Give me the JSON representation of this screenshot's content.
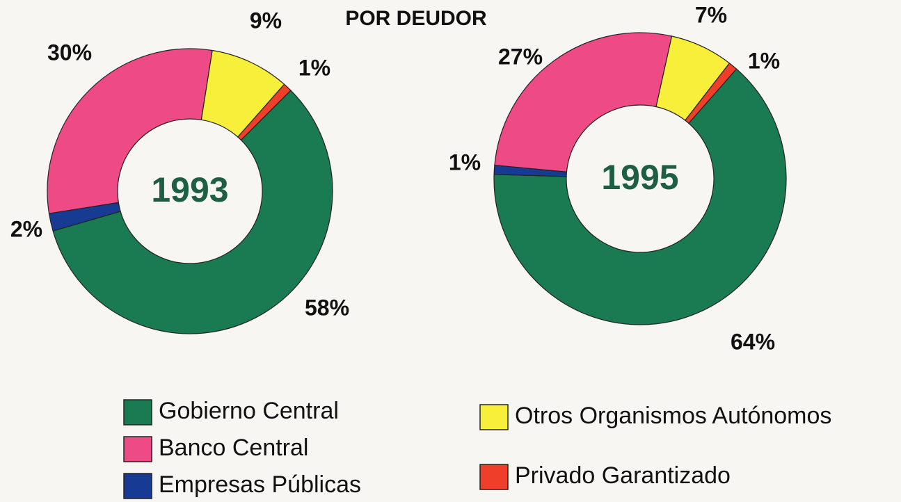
{
  "title": "POR DEUDOR",
  "chart_data": [
    {
      "type": "donut",
      "center_label": "1993",
      "categories": [
        "Otros Organismos Autónomos",
        "Privado Garantizado",
        "Gobierno Central",
        "Empresas Públicas",
        "Banco Central"
      ],
      "values": [
        9,
        1,
        58,
        2,
        30
      ],
      "value_labels": [
        "9%",
        "1%",
        "58%",
        "2%",
        "30%"
      ],
      "colors": [
        "#f7ef3a",
        "#ef3f2a",
        "#1a7a52",
        "#173a92",
        "#ee4a86"
      ]
    },
    {
      "type": "donut",
      "center_label": "1995",
      "categories": [
        "Otros Organismos Autónomos",
        "Privado Garantizado",
        "Gobierno Central",
        "Empresas Públicas",
        "Banco Central"
      ],
      "values": [
        7,
        1,
        64,
        1,
        27
      ],
      "value_labels": [
        "7%",
        "1%",
        "64%",
        "1%",
        "27%"
      ],
      "colors": [
        "#f7ef3a",
        "#ef3f2a",
        "#1a7a52",
        "#173a92",
        "#ee4a86"
      ]
    }
  ]
}
